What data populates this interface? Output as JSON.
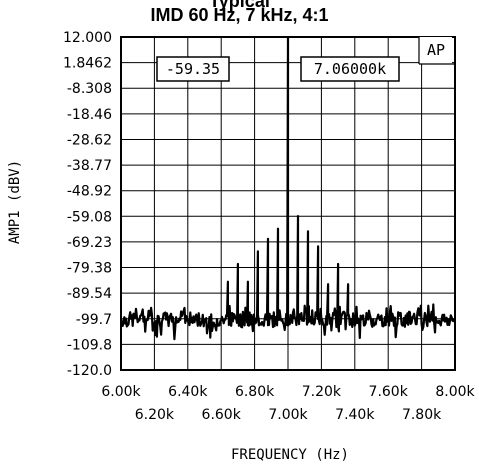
{
  "chart_data": {
    "type": "line",
    "title_partial": "Typical",
    "title": "IMD 60 Hz, 7 kHz, 4:1",
    "xlabel": "FREQUENCY (Hz)",
    "ylabel": "AMP1 (dBV)",
    "xlim": [
      6000,
      8000
    ],
    "ylim": [
      -120.0,
      12.0
    ],
    "x_ticks_upper": [
      "6.00k",
      "6.40k",
      "6.80k",
      "7.20k",
      "7.60k",
      "8.00k"
    ],
    "x_ticks_lower": [
      "6.20k",
      "6.60k",
      "7.00k",
      "7.40k",
      "7.80k"
    ],
    "y_ticks": [
      "12.000",
      "1.8462",
      "-8.308",
      "-18.46",
      "-28.62",
      "-38.77",
      "-48.92",
      "-59.08",
      "-69.23",
      "-79.38",
      "-89.54",
      "-99.7",
      "-109.8",
      "-120.0"
    ],
    "readout_level": "-59.35",
    "readout_frequency": "7.06000k",
    "badge": "AP",
    "grid": true,
    "noise_floor": -100,
    "series": [
      {
        "peaks": [
          {
            "x": 6640,
            "y": -85
          },
          {
            "x": 6700,
            "y": -78
          },
          {
            "x": 6760,
            "y": -85
          },
          {
            "x": 6820,
            "y": -73
          },
          {
            "x": 6880,
            "y": -68
          },
          {
            "x": 6940,
            "y": -64
          },
          {
            "x": 7000,
            "y": 12
          },
          {
            "x": 7060,
            "y": -59
          },
          {
            "x": 7120,
            "y": -65
          },
          {
            "x": 7180,
            "y": -71
          },
          {
            "x": 7240,
            "y": -86
          },
          {
            "x": 7300,
            "y": -78
          },
          {
            "x": 7360,
            "y": -86
          }
        ]
      }
    ]
  }
}
